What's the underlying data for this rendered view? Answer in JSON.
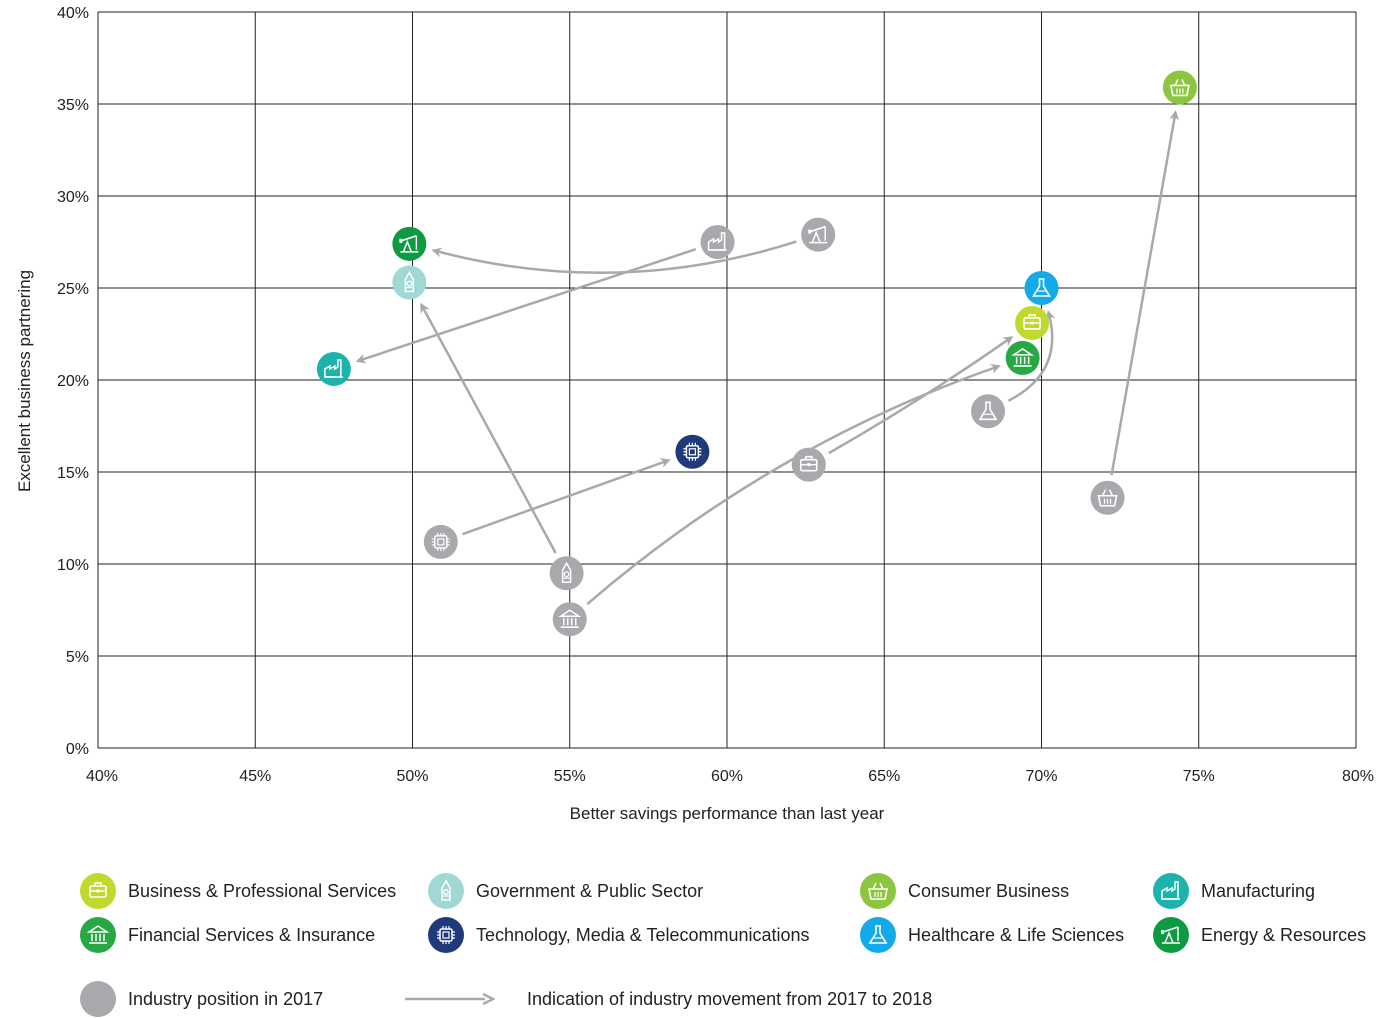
{
  "chart_data": {
    "type": "scatter",
    "xlabel": "Better savings performance than last year",
    "ylabel": "Excellent business partnering",
    "xlim": [
      40,
      80
    ],
    "ylim": [
      0,
      40
    ],
    "x_ticks": [
      "40%",
      "45%",
      "50%",
      "55%",
      "60%",
      "65%",
      "70%",
      "75%",
      "80%"
    ],
    "y_ticks": [
      "0%",
      "5%",
      "10%",
      "15%",
      "20%",
      "25%",
      "30%",
      "35%",
      "40%"
    ],
    "grid": true,
    "colors": {
      "position_2017": "#a7a9ac",
      "movement_arrow": "#a7a9ac"
    },
    "series": [
      {
        "name": "Business & Professional Services",
        "color": "#c1d82f",
        "icon": "briefcase-icon",
        "from": [
          62.6,
          15.4
        ],
        "to": [
          69.7,
          23.1
        ]
      },
      {
        "name": "Government & Public Sector",
        "color": "#9fd8d4",
        "icon": "tower-icon",
        "from": [
          54.9,
          9.5
        ],
        "to": [
          49.9,
          25.3
        ]
      },
      {
        "name": "Consumer Business",
        "color": "#8cc63f",
        "icon": "basket-icon",
        "from": [
          72.1,
          13.6
        ],
        "to": [
          74.4,
          35.9
        ]
      },
      {
        "name": "Manufacturing",
        "color": "#1db3ad",
        "icon": "factory-icon",
        "from": [
          59.7,
          27.5
        ],
        "to": [
          47.5,
          20.6
        ]
      },
      {
        "name": "Financial Services & Insurance",
        "color": "#27a844",
        "icon": "bank-icon",
        "from": [
          55.0,
          7.0
        ],
        "to": [
          69.4,
          21.2
        ]
      },
      {
        "name": "Technology, Media & Telecommunications",
        "color": "#1f3a7a",
        "icon": "chip-icon",
        "from": [
          50.9,
          11.2
        ],
        "to": [
          58.9,
          16.1
        ]
      },
      {
        "name": "Healthcare & Life Sciences",
        "color": "#14a9e8",
        "icon": "flask-icon",
        "from": [
          68.3,
          18.3
        ],
        "to": [
          70.0,
          25.0
        ]
      },
      {
        "name": "Energy & Resources",
        "color": "#0e9a43",
        "icon": "oil-pump-icon",
        "from": [
          62.9,
          27.9
        ],
        "to": [
          49.9,
          27.4
        ]
      }
    ]
  },
  "legend": {
    "position_2017_label": "Industry position in 2017",
    "movement_label": "Indication of industry movement from 2017 to 2018"
  }
}
